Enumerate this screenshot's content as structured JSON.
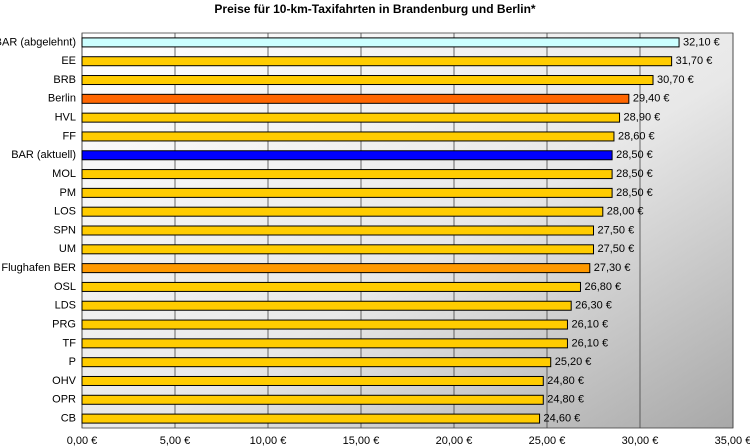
{
  "chart_data": {
    "type": "bar",
    "orientation": "horizontal",
    "title": "Preise für 10-km-Taxifahrten in Brandenburg und Berlin*",
    "categories": [
      "BAR (abgelehnt)",
      "EE",
      "BRB",
      "Berlin",
      "HVL",
      "FF",
      "BAR (aktuell)",
      "MOL",
      "PM",
      "LOS",
      "SPN",
      "UM",
      "Flughafen BER",
      "OSL",
      "LDS",
      "PRG",
      "TF",
      "P",
      "OHV",
      "OPR",
      "CB"
    ],
    "values": [
      32.1,
      31.7,
      30.7,
      29.4,
      28.9,
      28.6,
      28.5,
      28.5,
      28.5,
      28.0,
      27.5,
      27.5,
      27.3,
      26.8,
      26.3,
      26.1,
      26.1,
      25.2,
      24.8,
      24.8,
      24.6
    ],
    "value_labels": [
      "32,10 €",
      "31,70 €",
      "30,70 €",
      "29,40 €",
      "28,90 €",
      "28,60 €",
      "28,50 €",
      "28,50 €",
      "28,50 €",
      "28,00 €",
      "27,50 €",
      "27,50 €",
      "27,30 €",
      "26,80 €",
      "26,30 €",
      "26,10 €",
      "26,10 €",
      "25,20 €",
      "24,80 €",
      "24,80 €",
      "24,60 €"
    ],
    "colors": [
      "#ccffff",
      "#ffcc00",
      "#ffcc00",
      "#ff6600",
      "#ffcc00",
      "#ffcc00",
      "#0000ff",
      "#ffcc00",
      "#ffcc00",
      "#ffcc00",
      "#ffcc00",
      "#ffcc00",
      "#ff9900",
      "#ffcc00",
      "#ffcc00",
      "#ffcc00",
      "#ffcc00",
      "#ffcc00",
      "#ffcc00",
      "#ffcc00",
      "#ffcc00"
    ],
    "xlim": [
      0,
      35
    ],
    "xticks": [
      {
        "value": 0,
        "label": "0,00 €"
      },
      {
        "value": 5,
        "label": "5,00 €"
      },
      {
        "value": 10,
        "label": "10,00 €"
      },
      {
        "value": 15,
        "label": "15,00 €"
      },
      {
        "value": 20,
        "label": "20,00 €"
      },
      {
        "value": 25,
        "label": "25,00 €"
      },
      {
        "value": 30,
        "label": "30,00 €"
      },
      {
        "value": 35,
        "label": "35,00 €"
      }
    ],
    "grid": true
  }
}
